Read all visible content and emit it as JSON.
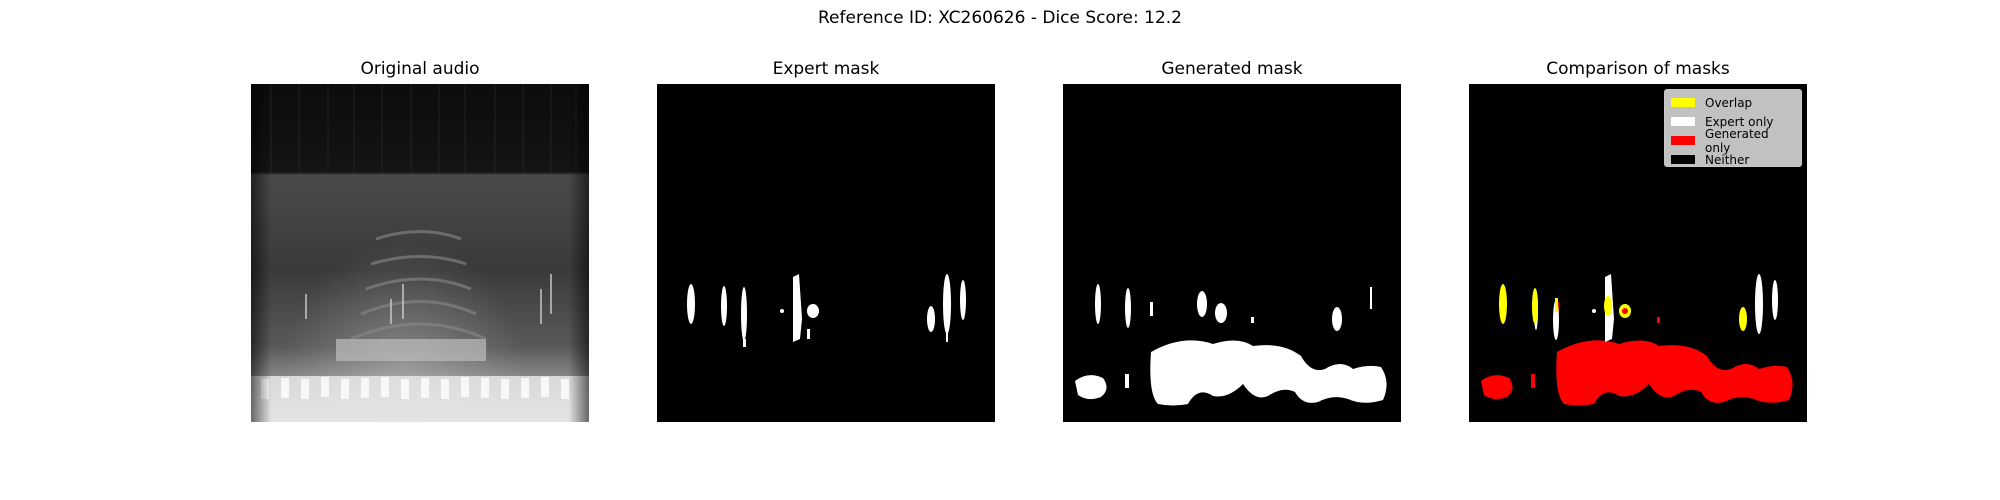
{
  "figure": {
    "suptitle": "Reference ID: XC260626 - Dice Score: 12.2"
  },
  "panels": [
    {
      "title": "Original audio"
    },
    {
      "title": "Expert mask"
    },
    {
      "title": "Generated mask"
    },
    {
      "title": "Comparison of masks"
    }
  ],
  "legend": {
    "items": [
      {
        "label": "Overlap",
        "color": "#ffff00"
      },
      {
        "label": "Expert only",
        "color": "#ffffff"
      },
      {
        "label": "Generated only",
        "color": "#ff0000"
      },
      {
        "label": "Neither",
        "color": "#000000"
      }
    ]
  }
}
